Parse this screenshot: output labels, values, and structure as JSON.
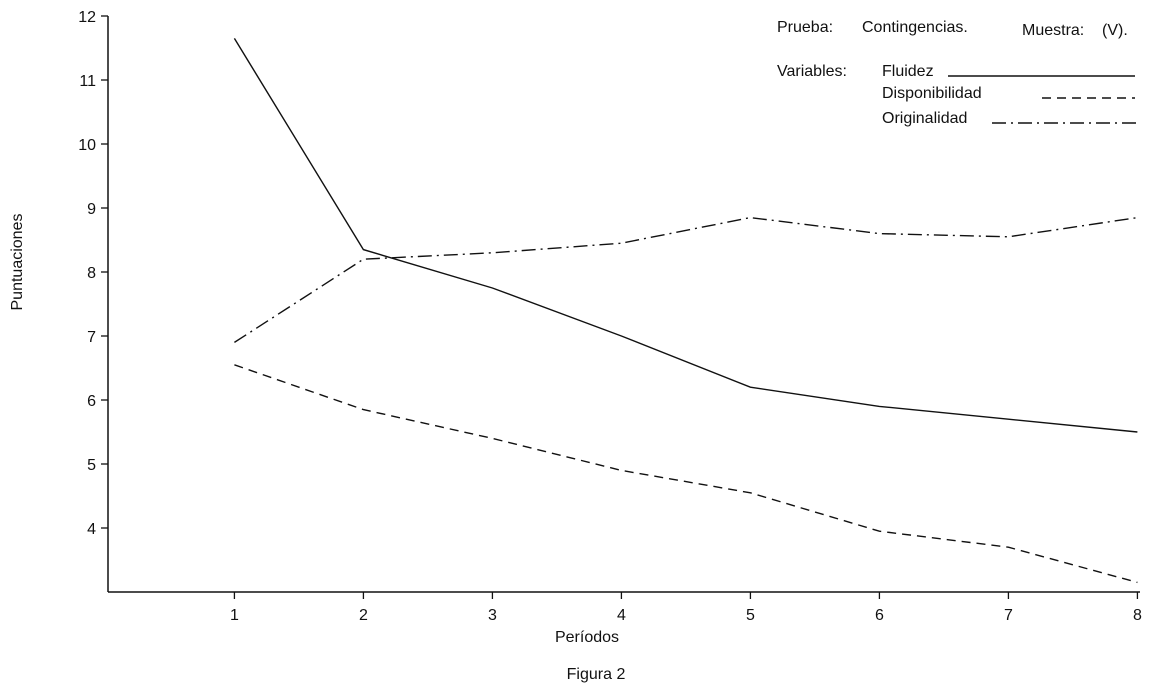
{
  "chart_data": {
    "type": "line",
    "title": "",
    "xlabel": "Períodos",
    "ylabel": "Puntuaciones",
    "caption": "Figura 2",
    "x": [
      1,
      2,
      3,
      4,
      5,
      6,
      7,
      8
    ],
    "xlim": [
      0.02,
      8.02
    ],
    "ylim": [
      3.0,
      12.0
    ],
    "y_ticks": [
      4,
      5,
      6,
      7,
      8,
      9,
      10,
      11,
      12
    ],
    "x_ticks": [
      1,
      2,
      3,
      4,
      5,
      6,
      7,
      8
    ],
    "grid": false,
    "legend_position": "top-right",
    "header": {
      "prueba_label": "Prueba:",
      "prueba_value": "Contingencias.",
      "muestra_label": "Muestra:",
      "muestra_value": "(V).",
      "variables_label": "Variables:"
    },
    "series": [
      {
        "name": "Fluidez",
        "style": "solid",
        "values": [
          11.65,
          8.35,
          7.75,
          7.0,
          6.2,
          5.9,
          5.7,
          5.5
        ]
      },
      {
        "name": "Disponibilidad",
        "style": "dashed",
        "values": [
          6.55,
          5.85,
          5.4,
          4.9,
          4.55,
          3.95,
          3.7,
          3.15
        ]
      },
      {
        "name": "Originalidad",
        "style": "dashdot",
        "values": [
          6.9,
          8.2,
          8.3,
          8.45,
          8.85,
          8.6,
          8.55,
          8.85
        ]
      }
    ],
    "colors": {
      "line": "#111111",
      "background": "#ffffff"
    }
  }
}
